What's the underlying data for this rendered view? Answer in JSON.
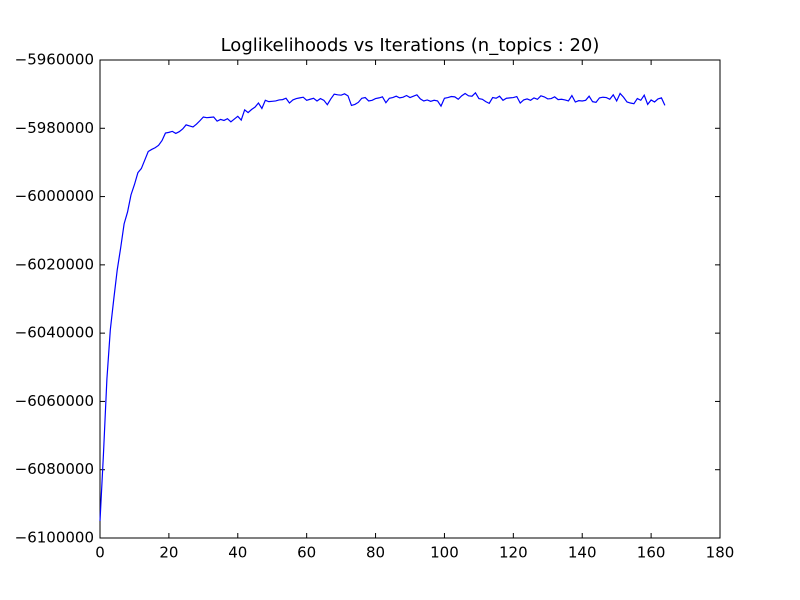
{
  "chart_data": {
    "type": "line",
    "title": "Loglikelihoods vs Iterations (n_topics : 20)",
    "color": "#0000ff",
    "x": [
      0,
      1,
      2,
      3,
      4,
      5,
      6,
      7,
      8,
      9,
      10,
      11,
      12,
      13,
      14,
      15,
      16,
      17,
      18,
      19,
      20,
      21,
      22,
      23,
      24,
      25,
      26,
      27,
      28,
      29,
      30,
      31,
      32,
      33,
      34,
      35,
      36,
      37,
      38,
      39,
      40,
      41,
      42,
      43,
      44,
      45,
      46,
      47,
      48,
      49,
      50,
      51,
      52,
      53,
      54,
      55,
      56,
      57,
      58,
      59,
      60,
      61,
      62,
      63,
      64,
      65,
      66,
      67,
      68,
      69,
      70,
      71,
      72,
      73,
      74,
      75,
      76,
      77,
      78,
      79,
      80,
      81,
      82,
      83,
      84,
      85,
      86,
      87,
      88,
      89,
      90,
      91,
      92,
      93,
      94,
      95,
      96,
      97,
      98,
      99,
      100,
      101,
      102,
      103,
      104,
      105,
      106,
      107,
      108,
      109,
      110,
      111,
      112,
      113,
      114,
      115,
      116,
      117,
      118,
      119,
      120,
      121,
      122,
      123,
      124,
      125,
      126,
      127,
      128,
      129,
      130,
      131,
      132,
      133,
      134,
      135,
      136,
      137,
      138,
      139,
      140,
      141,
      142,
      143,
      144,
      145,
      146,
      147,
      148,
      149,
      150,
      151,
      152,
      153,
      154,
      155,
      156,
      157,
      158,
      159,
      160,
      161,
      162,
      163,
      164
    ],
    "values": [
      -6095000,
      -6075500,
      -6053500,
      -6039000,
      -6030000,
      -6021500,
      -6015000,
      -6008000,
      -6004500,
      -5999500,
      -5996500,
      -5993000,
      -5991800,
      -5989300,
      -5986800,
      -5986200,
      -5985700,
      -5985000,
      -5983600,
      -5981400,
      -5981200,
      -5980900,
      -5981500,
      -5981000,
      -5980200,
      -5979000,
      -5979300,
      -5979600,
      -5978800,
      -5977800,
      -5976700,
      -5976900,
      -5976800,
      -5976700,
      -5977900,
      -5977400,
      -5977700,
      -5977200,
      -5978100,
      -5977300,
      -5976500,
      -5977600,
      -5974600,
      -5975400,
      -5974500,
      -5973800,
      -5972600,
      -5974200,
      -5971800,
      -5972200,
      -5972100,
      -5972000,
      -5971700,
      -5971600,
      -5971200,
      -5972600,
      -5971700,
      -5971300,
      -5971100,
      -5970900,
      -5971800,
      -5971500,
      -5971200,
      -5972000,
      -5971300,
      -5971800,
      -5973100,
      -5971400,
      -5970000,
      -5970200,
      -5970300,
      -5969900,
      -5970500,
      -5973300,
      -5973000,
      -5972400,
      -5971200,
      -5971000,
      -5972000,
      -5971800,
      -5971300,
      -5971100,
      -5970800,
      -5972500,
      -5971200,
      -5971000,
      -5970600,
      -5971100,
      -5970900,
      -5970400,
      -5971000,
      -5970600,
      -5970200,
      -5971400,
      -5972000,
      -5971700,
      -5972100,
      -5971800,
      -5972000,
      -5973500,
      -5971200,
      -5971000,
      -5970700,
      -5970800,
      -5971500,
      -5970500,
      -5969800,
      -5970500,
      -5970600,
      -5969600,
      -5971300,
      -5971500,
      -5972200,
      -5972700,
      -5971000,
      -5971200,
      -5970600,
      -5971800,
      -5971200,
      -5971100,
      -5971000,
      -5970700,
      -5972600,
      -5971700,
      -5971400,
      -5971800,
      -5971100,
      -5971500,
      -5970500,
      -5970800,
      -5971400,
      -5971300,
      -5970800,
      -5971600,
      -5971500,
      -5971700,
      -5972000,
      -5970400,
      -5972300,
      -5971900,
      -5972000,
      -5971800,
      -5970600,
      -5972200,
      -5972400,
      -5971100,
      -5970900,
      -5971000,
      -5971500,
      -5970200,
      -5972000,
      -5969800,
      -5970900,
      -5972300,
      -5972600,
      -5972800,
      -5971300,
      -5971800,
      -5970300,
      -5973000,
      -5971700,
      -5972300,
      -5971400,
      -5971100,
      -5973300
    ],
    "xlim": [
      0,
      180
    ],
    "xticks": [
      0,
      20,
      40,
      60,
      80,
      100,
      120,
      140,
      160,
      180
    ],
    "ylim": [
      -6100000,
      -5960000
    ],
    "yticks": [
      {
        "value": -6100000,
        "label": "−6100000"
      },
      {
        "value": -6080000,
        "label": "−6080000"
      },
      {
        "value": -6060000,
        "label": "−6060000"
      },
      {
        "value": -6040000,
        "label": "−6040000"
      },
      {
        "value": -6020000,
        "label": "−6020000"
      },
      {
        "value": -6000000,
        "label": "−6000000"
      },
      {
        "value": -5980000,
        "label": "−5980000"
      },
      {
        "value": -5960000,
        "label": "−5960000"
      }
    ],
    "grid": false
  }
}
